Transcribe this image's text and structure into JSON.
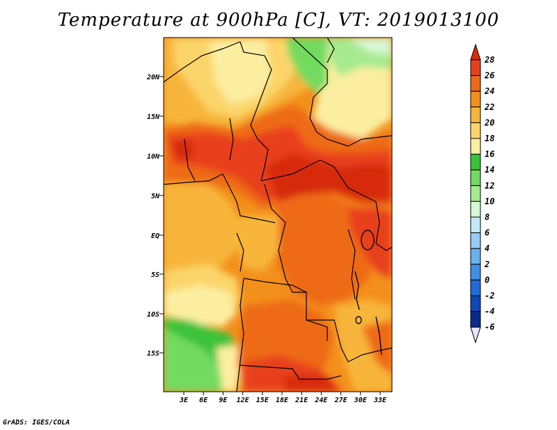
{
  "title": "Temperature at 900hPa [C], VT: 2019013100",
  "footer": "GrADS: IGES/COLA",
  "map": {
    "lat_labels": [
      "20N",
      "15N",
      "10N",
      "5N",
      "EQ",
      "5S",
      "10S",
      "15S"
    ],
    "lon_labels": [
      "3E",
      "6E",
      "9E",
      "12E",
      "15E",
      "18E",
      "21E",
      "24E",
      "27E",
      "30E",
      "33E"
    ]
  },
  "colorbar": {
    "levels": [
      "28",
      "26",
      "24",
      "22",
      "20",
      "18",
      "16",
      "14",
      "12",
      "10",
      "8",
      "6",
      "4",
      "2",
      "0",
      "-2",
      "-4",
      "-6"
    ],
    "colors": [
      "#d72a0a",
      "#e8401d",
      "#ee6a18",
      "#f3901c",
      "#f7b63a",
      "#fbd56a",
      "#fbeea0",
      "#3cc23a",
      "#73da60",
      "#a6ea8f",
      "#d6f8d4",
      "#c4e8f8",
      "#97cdf5",
      "#6bb0ef",
      "#3f8fe4",
      "#1f6bd8",
      "#1048b8",
      "#0b2a8a",
      "#06106a"
    ],
    "low_arrow_color": "#e6e6ff",
    "high_arrow_color": "#d72a0a"
  }
}
